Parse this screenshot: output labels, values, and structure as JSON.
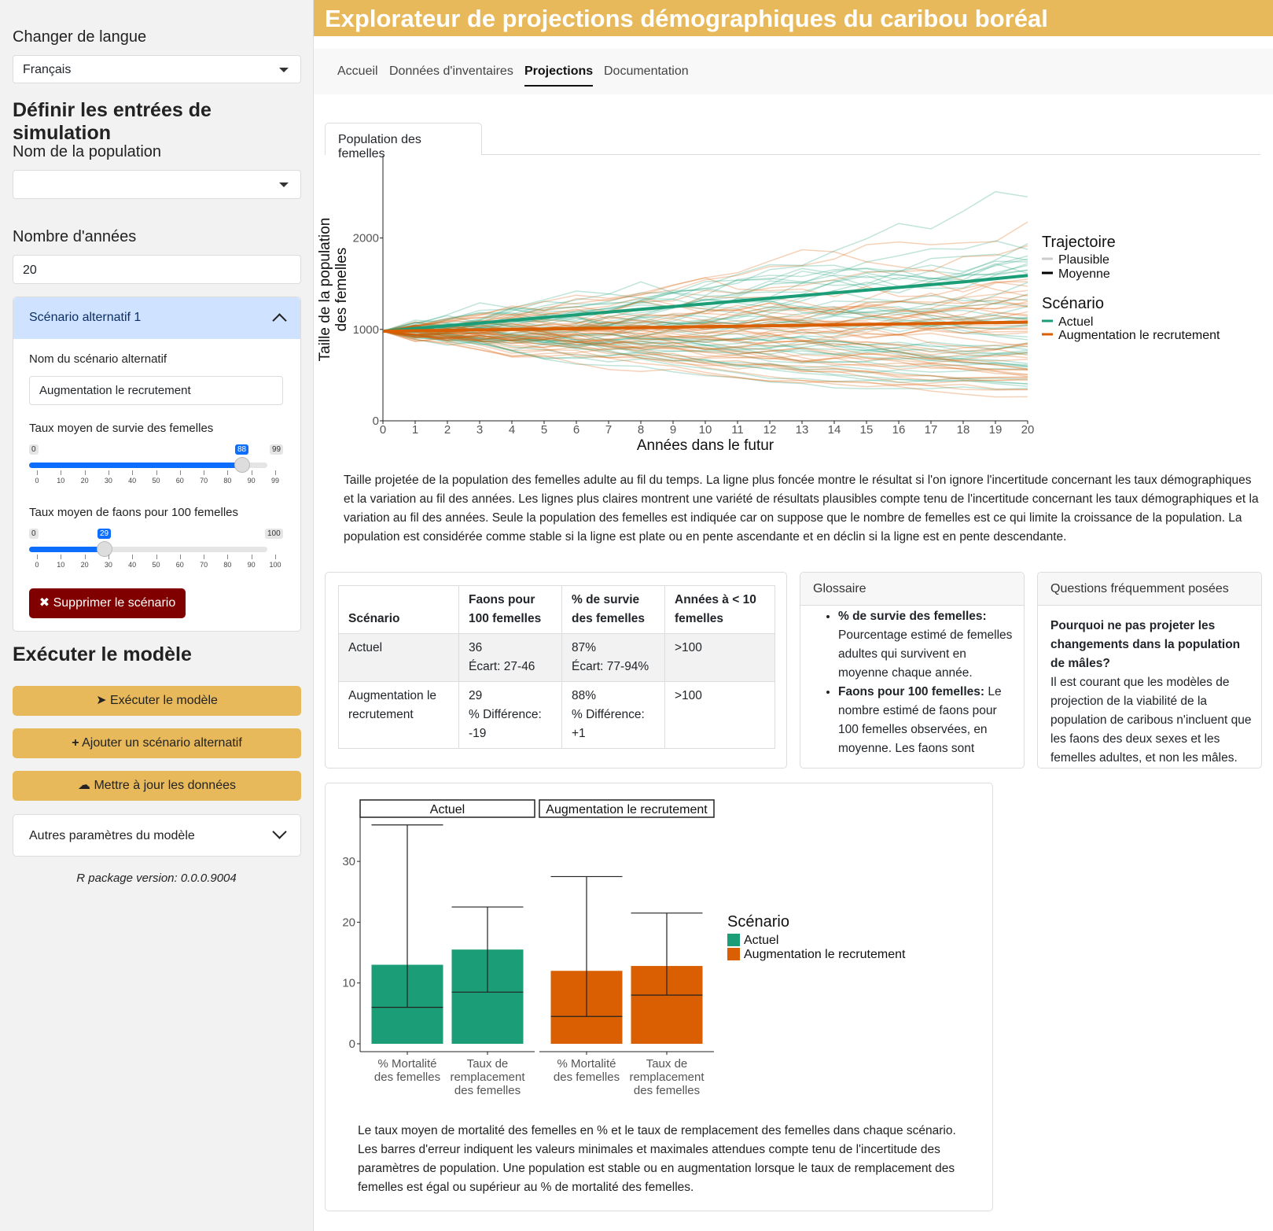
{
  "sidebar": {
    "language_label": "Changer de langue",
    "language_value": "Français",
    "inputs_heading": "Définir les entrées de simulation",
    "population_label": "Nom de la population",
    "population_value": "",
    "years_label": "Nombre d'années",
    "years_value": "20",
    "scenario": {
      "header": "Scénario alternatif 1",
      "name_label": "Nom du scénario alternatif",
      "name_value": "Augmentation le recrutement",
      "survival_label": "Taux moyen de survie des femelles",
      "survival_min": "0",
      "survival_max": "99",
      "survival_value": "88",
      "survival_ticks": [
        "0",
        "10",
        "20",
        "30",
        "40",
        "50",
        "60",
        "70",
        "80",
        "90",
        "99"
      ],
      "calves_label": "Taux moyen de faons pour 100 femelles",
      "calves_min": "0",
      "calves_max": "100",
      "calves_value": "29",
      "calves_ticks": [
        "0",
        "10",
        "20",
        "30",
        "40",
        "50",
        "60",
        "70",
        "80",
        "90",
        "100"
      ],
      "delete_button": "✖ Supprimer le scénario"
    },
    "run_heading": "Exécuter le modèle",
    "run_button": "Exécuter le modèle",
    "add_button": "Ajouter un scénario alternatif",
    "update_button": "Mettre à jour les données",
    "other_params": "Autres paramètres du modèle",
    "version": "R package version: 0.0.0.9004"
  },
  "header": {
    "title": "Explorateur de projections démographiques du caribou boréal"
  },
  "tabs": [
    "Accueil",
    "Données d'inventaires",
    "Projections",
    "Documentation"
  ],
  "active_tab": "Projections",
  "subtab": "Population des femelles",
  "line_chart": {
    "ylabel_1": "Taille de la population",
    "ylabel_2": "des femelles",
    "xlabel": "Années dans le futur",
    "legend_traj_title": "Trajectoire",
    "legend_traj_plausible": "Plausible",
    "legend_traj_mean": "Moyenne",
    "legend_scen_title": "Scénario",
    "legend_scen_1": "Actuel",
    "legend_scen_2": "Augmentation le recrutement"
  },
  "line_caption": "Taille projetée de la population des femelles adulte au fil du temps. La ligne plus foncée montre le résultat si l'on ignore l'incertitude concernant les taux démographiques et la variation au fil des années. Les lignes plus claires montrent une variété de résultats plausibles compte tenu de l'incertitude concernant les taux démographiques et la variation au fil des années. Seule la population des femelles est indiquée car on suppose que le nombre de femelles est ce qui limite la croissance de la population. La population est considérée comme stable si la ligne est plate ou en pente ascendante et en déclin si la ligne est en pente descendante.",
  "table": {
    "headers": [
      "Scénario",
      "Faons pour 100 femelles",
      "% de survie des femelles",
      "Années à < 10 femelles"
    ],
    "rows": [
      [
        "Actuel",
        "36\nÉcart: 27-46",
        "87%\nÉcart: 77-94%",
        ">100"
      ],
      [
        "Augmentation le recrutement",
        "29\n% Différence: -19",
        "88%\n% Différence: +1",
        ">100"
      ]
    ]
  },
  "glossary": {
    "title": "Glossaire",
    "item1_term": "% de survie des femelles:",
    "item1_text": "Pourcentage estimé de femelles adultes qui survivent en moyenne chaque année.",
    "item2_term": "Faons pour 100 femelles:",
    "item2_text": "Le nombre estimé de faons pour 100 femelles observées, en moyenne. Les faons sont"
  },
  "faq": {
    "title": "Questions fréquemment posées",
    "question": "Pourquoi ne pas projeter les changements dans la population de mâles?",
    "answer": "Il est courant que les modèles de projection de la viabilité de la population de caribous n'incluent que les faons des deux sexes et les femelles adultes, et non les mâles."
  },
  "bar_caption": "Le taux moyen de mortalité des femelles en % et le taux de remplacement des femelles dans chaque scénario. Les barres d'erreur indiquent les valeurs minimales et maximales attendues compte tenu de l'incertitude des paramètres de population. Une population est stable ou en augmentation lorsque le taux de remplacement des femelles est égal ou supérieur au % de mortalité des femelles.",
  "colors": {
    "actuel": "#1b9e77",
    "augmentation": "#d95f02",
    "accent": "#e8b95a",
    "delete": "#800000"
  },
  "chart_data": [
    {
      "type": "line",
      "title": "",
      "xlabel": "Années dans le futur",
      "ylabel": "Taille de la population des femelles",
      "x": [
        0,
        1,
        2,
        3,
        4,
        5,
        6,
        7,
        8,
        9,
        10,
        11,
        12,
        13,
        14,
        15,
        16,
        17,
        18,
        19,
        20
      ],
      "xlim": [
        0,
        20
      ],
      "ylim": [
        0,
        2900
      ],
      "yticks": [
        0,
        1000,
        2000
      ],
      "series": [
        {
          "name": "Actuel",
          "trajectory": "Moyenne",
          "values": [
            980,
            1010,
            1040,
            1070,
            1100,
            1130,
            1160,
            1190,
            1220,
            1250,
            1280,
            1310,
            1340,
            1370,
            1400,
            1430,
            1460,
            1490,
            1520,
            1555,
            1590
          ]
        },
        {
          "name": "Augmentation le recrutement",
          "trajectory": "Moyenne",
          "values": [
            980,
            985,
            990,
            995,
            1000,
            1005,
            1010,
            1015,
            1020,
            1025,
            1030,
            1035,
            1040,
            1045,
            1050,
            1055,
            1060,
            1065,
            1070,
            1075,
            1080
          ]
        }
      ],
      "plausible_trajectories": "many light lines per scenario",
      "legend": "right"
    },
    {
      "type": "bar",
      "title": "",
      "facets": [
        "Actuel",
        "Augmentation le recrutement"
      ],
      "categories": [
        "% Mortalité des femelles",
        "Taux de remplacement des femelles"
      ],
      "ylim": [
        0,
        37
      ],
      "yticks": [
        0,
        10,
        20,
        30
      ],
      "series": [
        {
          "name": "Actuel",
          "values": [
            13,
            15.5
          ],
          "lower": [
            6,
            8.5
          ],
          "upper": [
            36,
            22.5
          ]
        },
        {
          "name": "Augmentation le recrutement",
          "values": [
            12,
            12.8
          ],
          "lower": [
            4.5,
            8
          ],
          "upper": [
            27.5,
            21.5
          ]
        }
      ],
      "legend_title": "Scénario",
      "legend": "right"
    }
  ]
}
